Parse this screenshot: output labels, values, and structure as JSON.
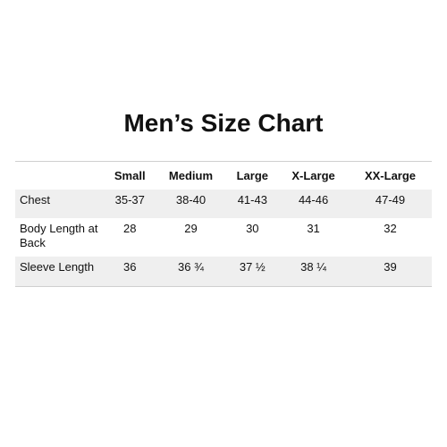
{
  "header": {
    "title": "Men’s Size Chart"
  },
  "table": {
    "columns": [
      "Small",
      "Medium",
      "Large",
      "X-Large",
      "XX-Large"
    ],
    "rows": [
      {
        "label": "Chest",
        "cells": [
          "35-37",
          "38-40",
          "41-43",
          "44-46",
          "47-49"
        ]
      },
      {
        "label": "Body Length at Back",
        "cells": [
          28,
          29,
          30,
          31,
          32
        ]
      },
      {
        "label": "Sleeve Length",
        "cells": [
          36,
          "36 ¾",
          "37 ½",
          "38 ¼",
          39
        ]
      }
    ]
  }
}
